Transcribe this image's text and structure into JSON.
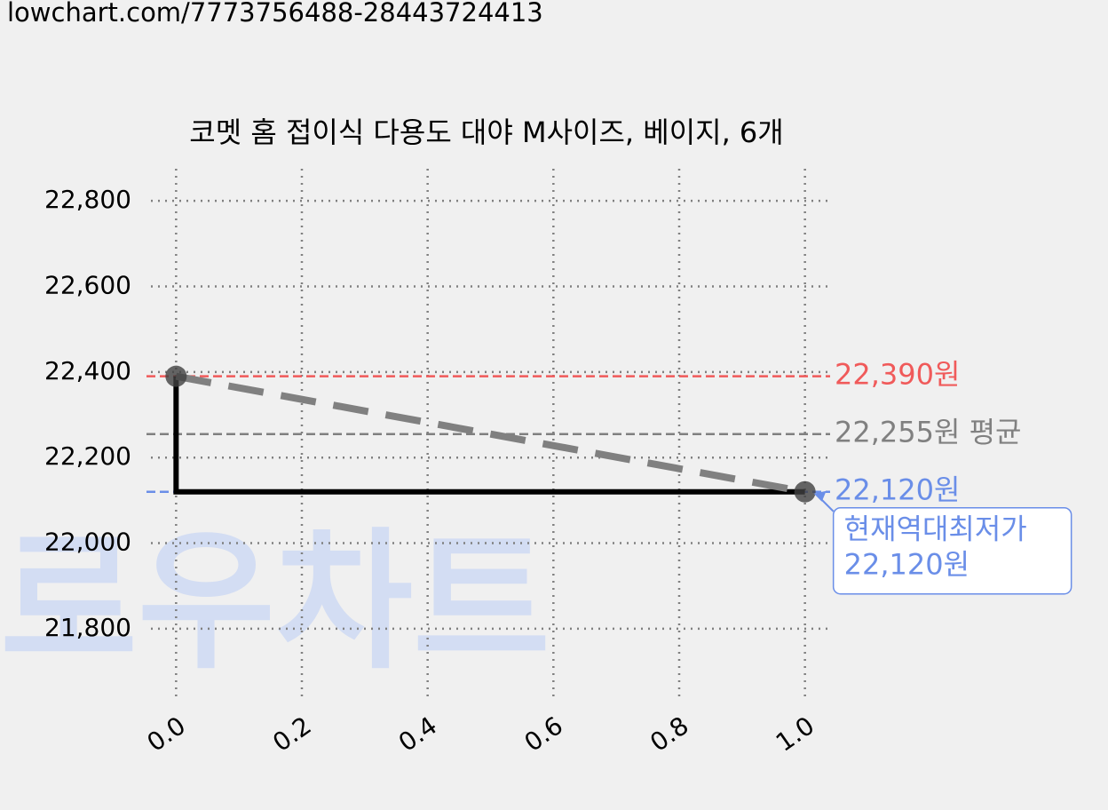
{
  "page": {
    "url": "lowchart.com/7773756488-28443724413"
  },
  "chart_data": {
    "type": "line",
    "title": "코멧 홈 접이식 다용도 대야 M사이즈, 베이지, 6개",
    "watermark": "로우차트",
    "x": [
      0,
      1
    ],
    "series": [
      {
        "color": "#000000",
        "step": "pre",
        "values": [
          22390,
          22120
        ]
      },
      {
        "color": "#808080",
        "dashed": true,
        "markers": true,
        "values": [
          22390,
          22120
        ]
      }
    ],
    "reference_lines": [
      {
        "value": 22390,
        "label": "22,390원",
        "color": "#f05a5a"
      },
      {
        "value": 22255,
        "label": "22,255원 평균",
        "color": "#808080"
      },
      {
        "value": 22120,
        "label": "22,120원",
        "color": "#6a8ee8"
      }
    ],
    "annotation": {
      "lines": [
        "현재역대최저가",
        "22,120원"
      ],
      "x": 1,
      "y": 22120,
      "color": "#6a8ee8"
    },
    "xlim": [
      -0.04,
      1.04
    ],
    "ylim": [
      21640,
      22875
    ],
    "xticks": [
      {
        "value": 0,
        "label": "0.0"
      },
      {
        "value": 0.2,
        "label": "0.2"
      },
      {
        "value": 0.4,
        "label": "0.4"
      },
      {
        "value": 0.6,
        "label": "0.6"
      },
      {
        "value": 0.8,
        "label": "0.8"
      },
      {
        "value": 1,
        "label": "1.0"
      }
    ],
    "yticks": [
      {
        "value": 21800,
        "label": "21,800"
      },
      {
        "value": 22000,
        "label": "22,000"
      },
      {
        "value": 22200,
        "label": "22,200"
      },
      {
        "value": 22400,
        "label": "22,400"
      },
      {
        "value": 22600,
        "label": "22,600"
      },
      {
        "value": 22800,
        "label": "22,800"
      }
    ],
    "grid": true
  }
}
